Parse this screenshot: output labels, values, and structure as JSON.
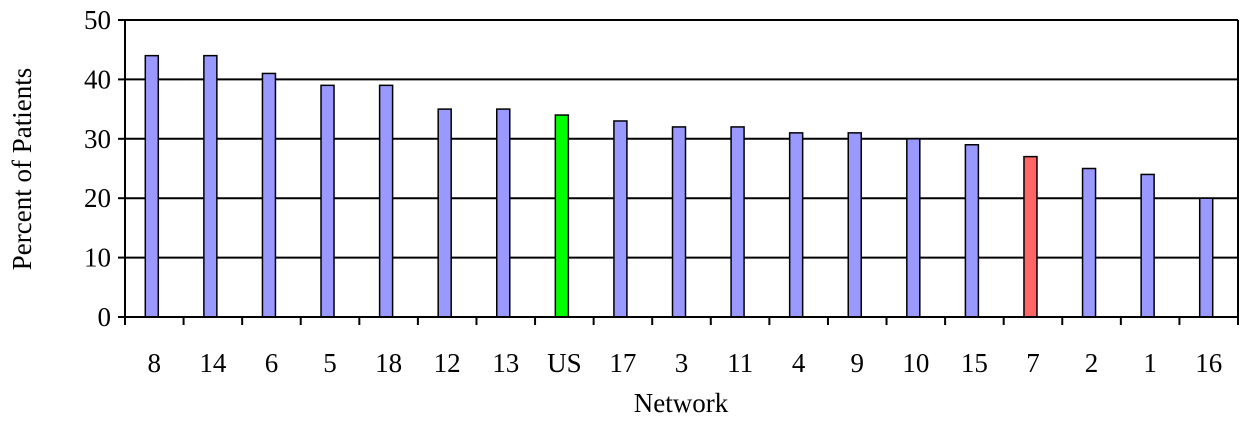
{
  "chart_data": {
    "type": "bar",
    "title": "",
    "xlabel": "Network",
    "ylabel": "Percent of Patients",
    "ylim": [
      0,
      50
    ],
    "yticks": [
      0,
      10,
      20,
      30,
      40,
      50
    ],
    "grid": true,
    "legend": "none",
    "categories": [
      "8",
      "14",
      "6",
      "5",
      "18",
      "12",
      "13",
      "US",
      "17",
      "3",
      "11",
      "4",
      "9",
      "10",
      "15",
      "7",
      "2",
      "1",
      "16"
    ],
    "values": [
      44,
      44,
      41,
      39,
      39,
      35,
      35,
      34,
      33,
      32,
      32,
      31,
      31,
      30,
      29,
      27,
      25,
      24,
      20
    ],
    "bar_colors": [
      "#9999ff",
      "#9999ff",
      "#9999ff",
      "#9999ff",
      "#9999ff",
      "#9999ff",
      "#9999ff",
      "#00ff00",
      "#9999ff",
      "#9999ff",
      "#9999ff",
      "#9999ff",
      "#9999ff",
      "#9999ff",
      "#9999ff",
      "#ff6666",
      "#9999ff",
      "#9999ff",
      "#9999ff"
    ],
    "bar_offsets": [
      0,
      0,
      0,
      0,
      0,
      0,
      0,
      0,
      0,
      0,
      0,
      0,
      0,
      0,
      0,
      0,
      0,
      0,
      0
    ]
  }
}
